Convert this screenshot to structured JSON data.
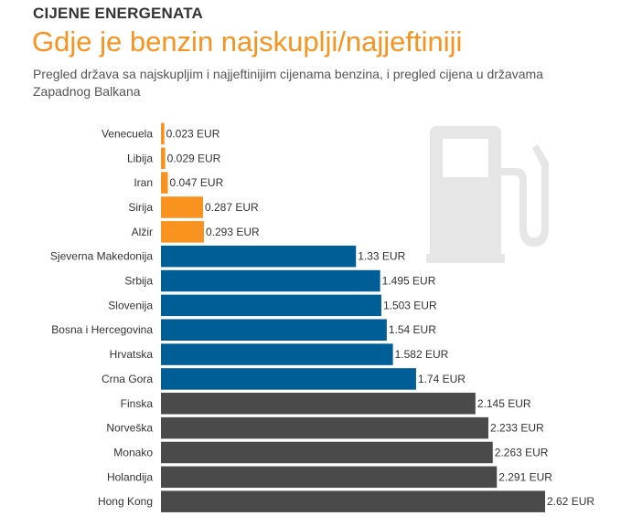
{
  "header": {
    "kicker": "CIJENE ENERGENATA",
    "title": "Gdje je benzin najskuplji/najjeftiniji",
    "subtitle": "Pregled država sa najskupljim i najjeftinijim cijenama benzina, i pregled cijena u državama Zapadnog Balkana"
  },
  "icon": {
    "name": "fuel-pump-icon",
    "color": "#e6e6e6"
  },
  "chart_data": {
    "type": "bar",
    "orientation": "horizontal",
    "categories": [
      "Venecuela",
      "Libija",
      "Iran",
      "Sirija",
      "Alžir",
      "Sjeverna Makedonija",
      "Srbija",
      "Slovenija",
      "Bosna i Hercegovina",
      "Hrvatska",
      "Crna Gora",
      "Finska",
      "Norveška",
      "Monako",
      "Holandija",
      "Hong Kong"
    ],
    "values": [
      0.023,
      0.029,
      0.047,
      0.287,
      0.293,
      1.33,
      1.495,
      1.503,
      1.54,
      1.582,
      1.74,
      2.145,
      2.233,
      2.263,
      2.291,
      2.62
    ],
    "value_labels": [
      "0.023 EUR",
      "0.029 EUR",
      "0.047 EUR",
      "0.287 EUR",
      "0.293 EUR",
      "1.33 EUR",
      "1.495 EUR",
      "1.503 EUR",
      "1.54 EUR",
      "1.582 EUR",
      "1.74 EUR",
      "2.145 EUR",
      "2.233 EUR",
      "2.263 EUR",
      "2.291 EUR",
      "2.62 EUR"
    ],
    "bar_colors": [
      "#f7931e",
      "#f7931e",
      "#f7931e",
      "#f7931e",
      "#f7931e",
      "#005e97",
      "#005e97",
      "#005e97",
      "#005e97",
      "#005e97",
      "#005e97",
      "#4a4a4a",
      "#4a4a4a",
      "#4a4a4a",
      "#4a4a4a",
      "#4a4a4a"
    ],
    "xlim": [
      0,
      2.62
    ],
    "grid": false,
    "legend": "none"
  }
}
